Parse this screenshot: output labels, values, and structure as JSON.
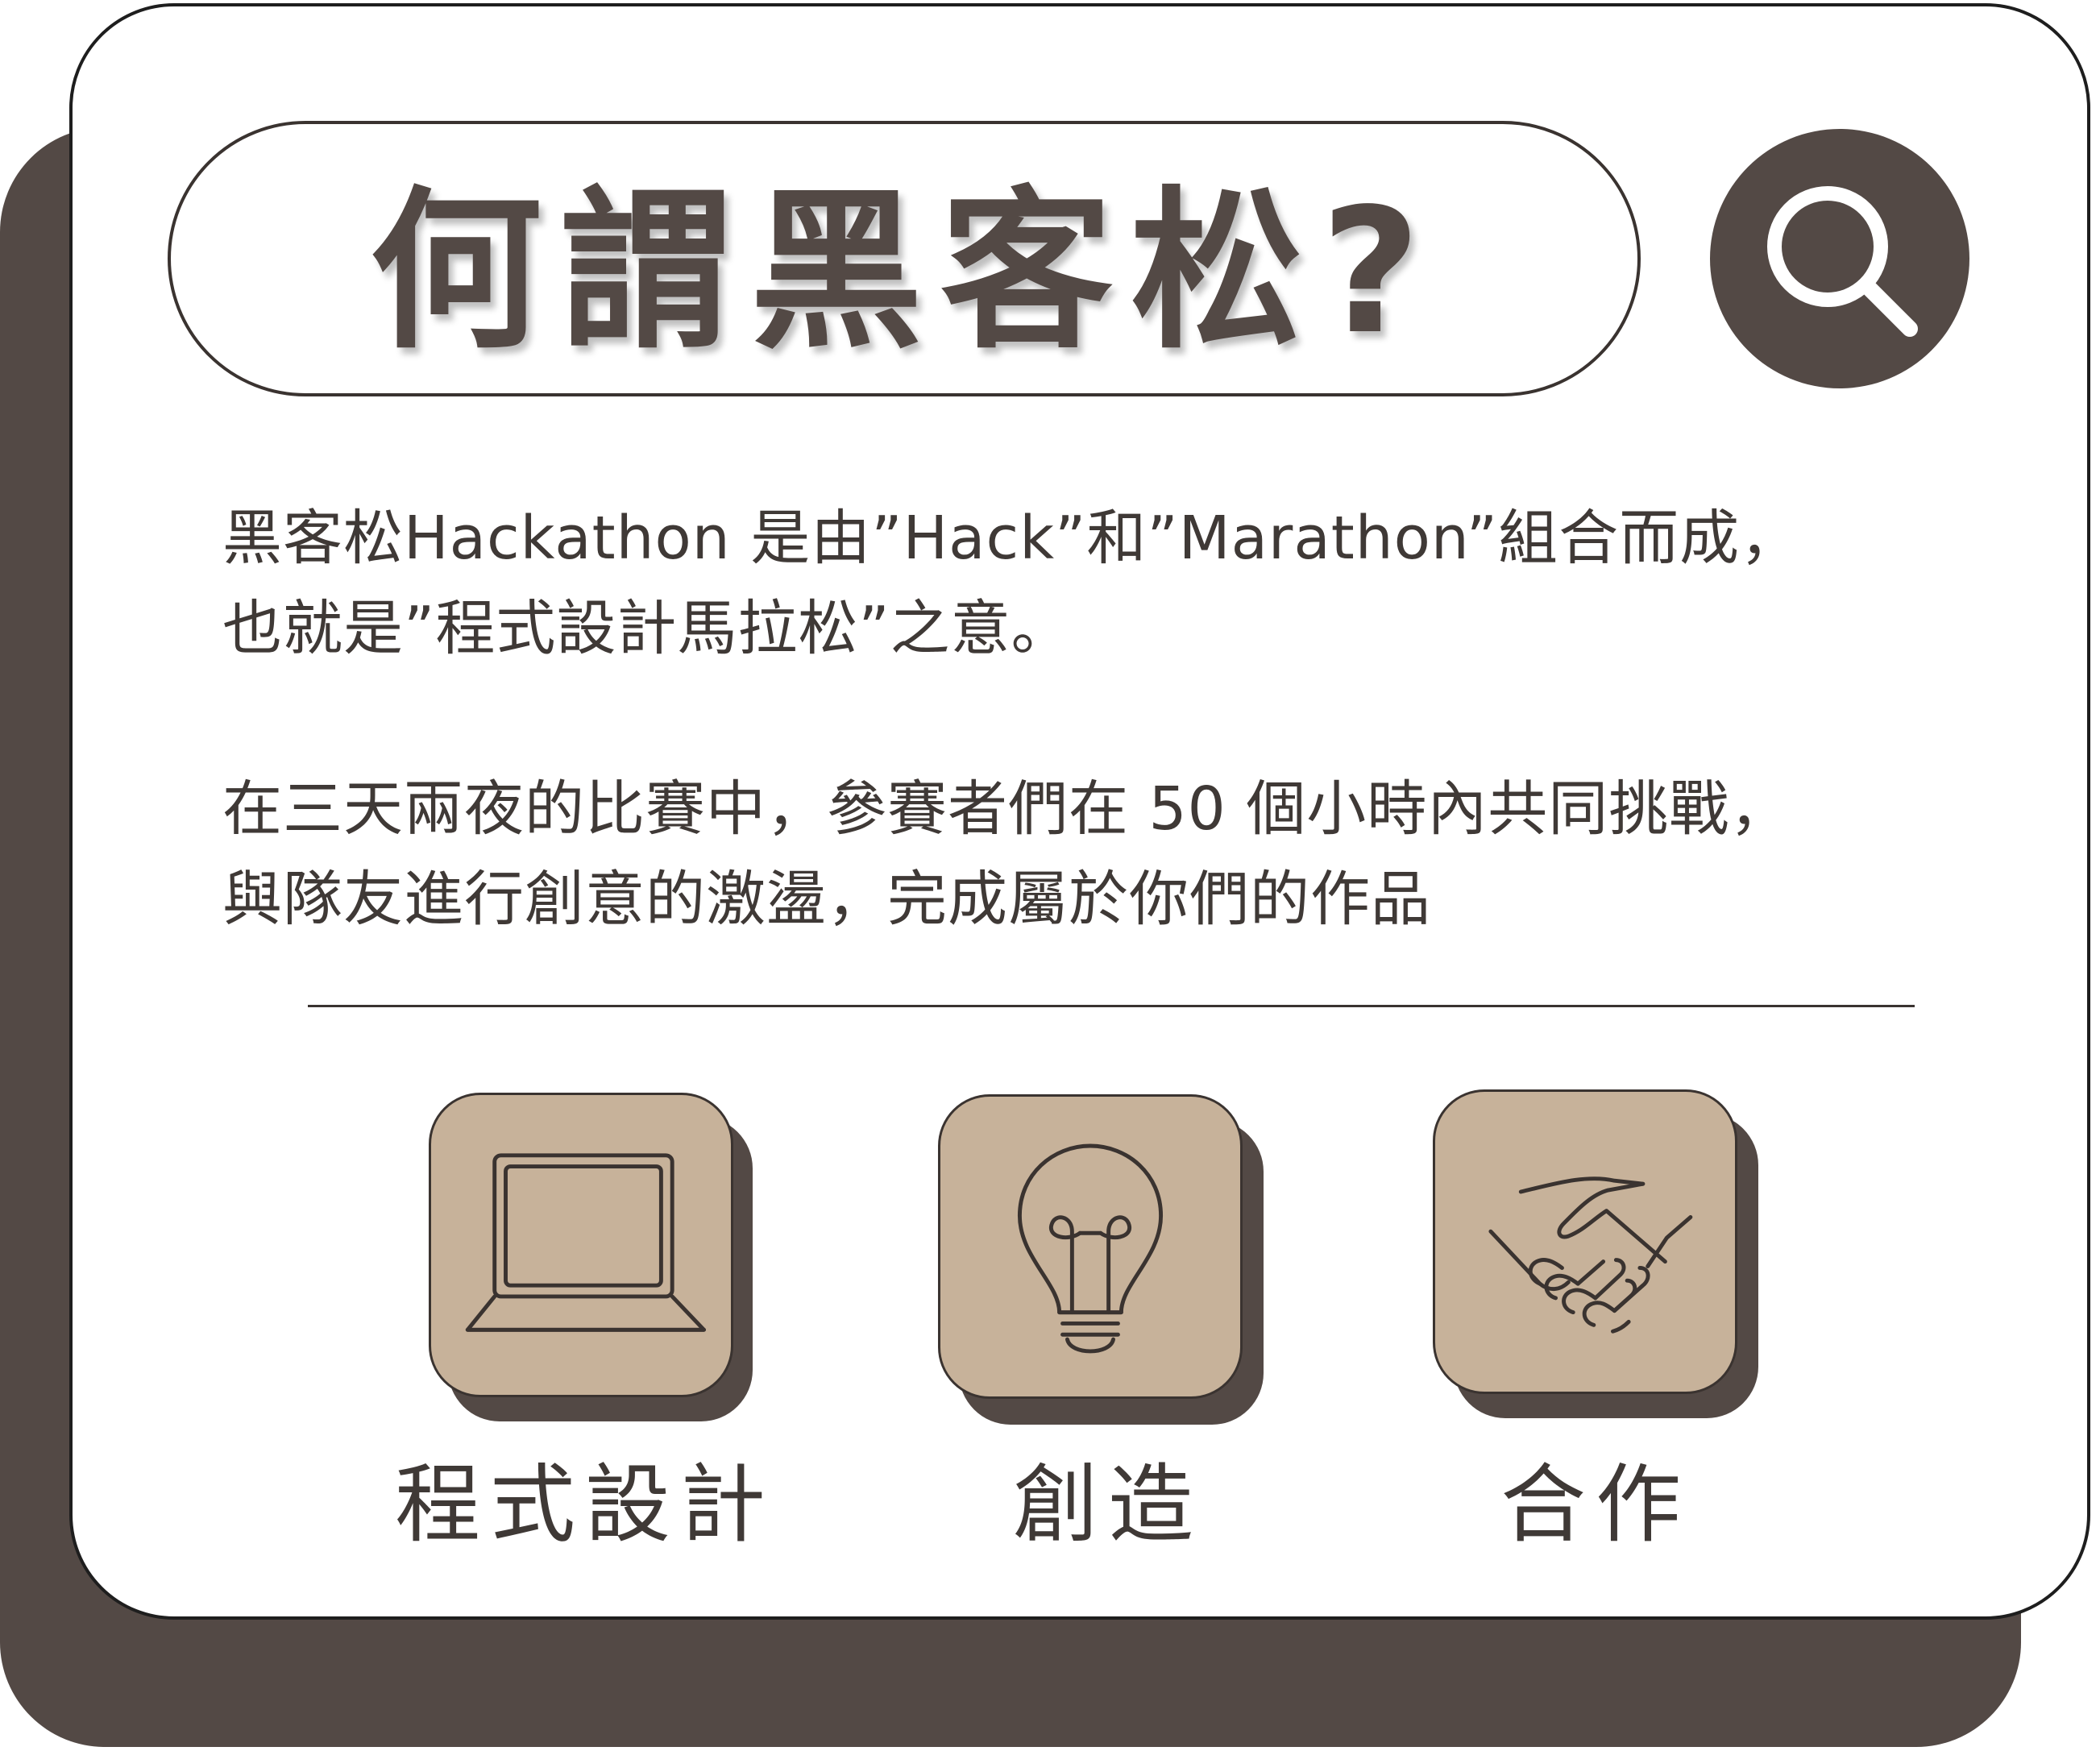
{
  "header": {
    "title": "何謂黑客松?",
    "search_icon": "search-icon"
  },
  "intro": {
    "line_1": "黑客松Hackathon 是由”Hack”和”Marathon”組合而成，",
    "line_2": "也就是”程式設計馬拉松”之意。"
  },
  "details": {
    "line_1": "在三天兩夜的比賽中，參賽者們在 50 個小時內共同挑戰，",
    "line_2": "與隊友進行創意的激盪，完成屬於你們的作品"
  },
  "features": [
    {
      "label": "程式設計",
      "icon": "laptop-icon"
    },
    {
      "label": "創造",
      "icon": "lightbulb-icon"
    },
    {
      "label": "合作",
      "icon": "handshake-icon"
    }
  ],
  "colors": {
    "dark_brown": "#534945",
    "tan": "#c7b29a",
    "text": "#3f3936",
    "background": "#ffffff"
  }
}
